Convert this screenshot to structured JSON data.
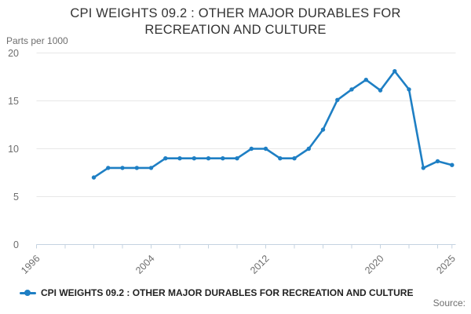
{
  "chart_data": {
    "type": "line",
    "title": "CPI WEIGHTS 09.2 : OTHER MAJOR DURABLES FOR RECREATION AND CULTURE",
    "unit_label": "Parts per 1000",
    "ylim": [
      0,
      20
    ],
    "yticks": [
      0,
      5,
      10,
      15,
      20
    ],
    "xlim": [
      1996,
      2025.4
    ],
    "xticks": [
      1996,
      1998,
      2000,
      2002,
      2004,
      2006,
      2008,
      2010,
      2012,
      2014,
      2016,
      2018,
      2020,
      2022,
      2024,
      2025
    ],
    "xtick_labels": [
      {
        "year": 1996,
        "label": "1996"
      },
      {
        "year": 2004,
        "label": "2004"
      },
      {
        "year": 2012,
        "label": "2012"
      },
      {
        "year": 2020,
        "label": "2020"
      },
      {
        "year": 2025,
        "label": "2025"
      }
    ],
    "grid": "horizontal",
    "legend_position": "bottom-left",
    "series": [
      {
        "name": "CPI WEIGHTS 09.2 : OTHER MAJOR DURABLES FOR RECREATION AND CULTURE",
        "color": "#1e7fc4",
        "marker": "circle",
        "x": [
          2000,
          2001,
          2002,
          2003,
          2004,
          2005,
          2006,
          2007,
          2008,
          2009,
          2010,
          2011,
          2012,
          2013,
          2014,
          2015,
          2016,
          2017,
          2018,
          2019,
          2020,
          2021,
          2022,
          2023,
          2024,
          2025
        ],
        "values": [
          7,
          8,
          8,
          8,
          8,
          9,
          9,
          9,
          9,
          9,
          9,
          10,
          10,
          9,
          9,
          10,
          12,
          15.1,
          16.2,
          17.2,
          16.1,
          18.1,
          16.2,
          8,
          8.7,
          8.3
        ]
      }
    ],
    "colors": {
      "title": "#333333",
      "tick_label": "#6e6e6e",
      "grid_line": "#e7e7e7",
      "axis_line": "#c5d3e0",
      "series_blue": "#1e7fc4",
      "background": "#ffffff"
    }
  },
  "legend": {
    "label": "CPI WEIGHTS 09.2 : OTHER MAJOR DURABLES FOR RECREATION AND CULTURE",
    "marker_icon": "line-dot-icon",
    "color": "#1e7fc4"
  },
  "footer": {
    "source_label": "Source:"
  }
}
